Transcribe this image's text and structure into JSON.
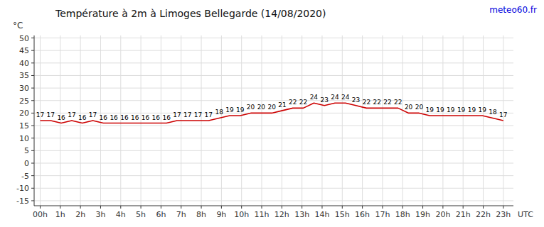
{
  "chart_data": {
    "type": "line",
    "title": "Température à 2m à Limoges Bellegarde (14/08/2020)",
    "ylabel": "°C",
    "xlabel": "UTC",
    "annotations": [
      {
        "text": "meteo60.fr",
        "color": "#0000dd"
      }
    ],
    "x": [
      0,
      0.522727,
      1.045455,
      1.568182,
      2.090909,
      2.613636,
      3.136364,
      3.659091,
      4.181818,
      4.704545,
      5.227273,
      5.75,
      6.272727,
      6.795455,
      7.318182,
      7.840909,
      8.363636,
      8.886364,
      9.409091,
      9.931818,
      10.454545,
      10.977273,
      11.5,
      12.022727,
      12.545455,
      13.068182,
      13.590909,
      14.113636,
      14.636364,
      15.159091,
      15.681818,
      16.204545,
      16.727273,
      17.25,
      17.772727,
      18.295455,
      18.818182,
      19.340909,
      19.863636,
      20.386364,
      20.909091,
      21.431818,
      21.954545,
      22.477273,
      23
    ],
    "values": [
      17,
      17,
      16,
      17,
      16,
      17,
      16,
      16,
      16,
      16,
      16,
      16,
      16,
      17,
      17,
      17,
      17,
      18,
      19,
      19,
      20,
      20,
      20,
      21,
      22,
      22,
      24,
      23,
      24,
      24,
      23,
      22,
      22,
      22,
      22,
      20,
      20,
      19,
      19,
      19,
      19,
      19,
      19,
      18,
      17
    ],
    "color": "#cc0000",
    "data_labels": true,
    "grid": true,
    "xlim": [
      -0.3,
      23.5
    ],
    "xticks": [
      {
        "value": 0,
        "label": "00h"
      },
      {
        "value": 1,
        "label": "1h"
      },
      {
        "value": 2,
        "label": "2h"
      },
      {
        "value": 3,
        "label": "3h"
      },
      {
        "value": 4,
        "label": "4h"
      },
      {
        "value": 5,
        "label": "5h"
      },
      {
        "value": 6,
        "label": "6h"
      },
      {
        "value": 7,
        "label": "7h"
      },
      {
        "value": 8,
        "label": "8h"
      },
      {
        "value": 9,
        "label": "9h"
      },
      {
        "value": 10,
        "label": "10h"
      },
      {
        "value": 11,
        "label": "11h"
      },
      {
        "value": 12,
        "label": "12h"
      },
      {
        "value": 13,
        "label": "13h"
      },
      {
        "value": 14,
        "label": "14h"
      },
      {
        "value": 15,
        "label": "15h"
      },
      {
        "value": 16,
        "label": "16h"
      },
      {
        "value": 17,
        "label": "17h"
      },
      {
        "value": 18,
        "label": "18h"
      },
      {
        "value": 19,
        "label": "19h"
      },
      {
        "value": 20,
        "label": "20h"
      },
      {
        "value": 21,
        "label": "21h"
      },
      {
        "value": 22,
        "label": "22h"
      },
      {
        "value": 23,
        "label": "23h"
      }
    ],
    "ylim": [
      -17,
      51
    ],
    "yticks": [
      -15,
      -10,
      -5,
      0,
      5,
      10,
      15,
      20,
      25,
      30,
      35,
      40,
      45,
      50
    ]
  }
}
